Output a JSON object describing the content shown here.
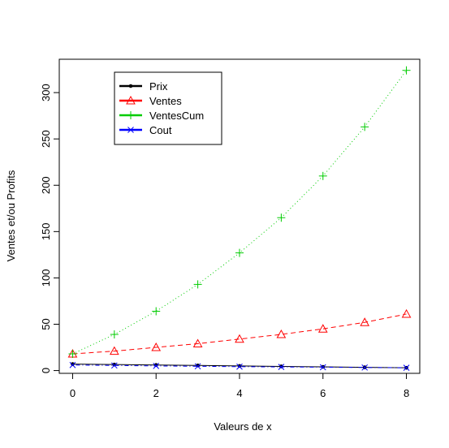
{
  "chart_data": {
    "type": "line",
    "title": "",
    "xlabel": "Valeurs de x",
    "ylabel": "Ventes et/ou Profits",
    "xlim": [
      -0.32,
      8.32
    ],
    "ylim": [
      -3,
      336
    ],
    "xticks": [
      0,
      2,
      4,
      6,
      8
    ],
    "yticks": [
      0,
      50,
      100,
      150,
      200,
      250,
      300
    ],
    "grid": false,
    "legend_position": "top-left",
    "x": [
      0,
      1,
      2,
      3,
      4,
      5,
      6,
      7,
      8
    ],
    "series": [
      {
        "name": "Prix",
        "color": "#000000",
        "marker": "dot",
        "line": "solid",
        "values": [
          7,
          6.5,
          6,
          5.5,
          5,
          4.5,
          4,
          3.5,
          3
        ]
      },
      {
        "name": "Ventes",
        "color": "#FF0000",
        "marker": "triangle",
        "line": "dashed",
        "values": [
          18,
          21,
          25,
          29,
          34,
          39,
          45,
          52,
          61
        ]
      },
      {
        "name": "VentesCum",
        "color": "#00CC00",
        "marker": "plus",
        "line": "dotted",
        "values": [
          18,
          39,
          64,
          93,
          127,
          165,
          210,
          263,
          324
        ]
      },
      {
        "name": "Cout",
        "color": "#0000FF",
        "marker": "cross",
        "line": "dashdot",
        "values": [
          6,
          5.5,
          5,
          4.6,
          4.2,
          3.9,
          3.6,
          3.3,
          3
        ]
      }
    ]
  }
}
